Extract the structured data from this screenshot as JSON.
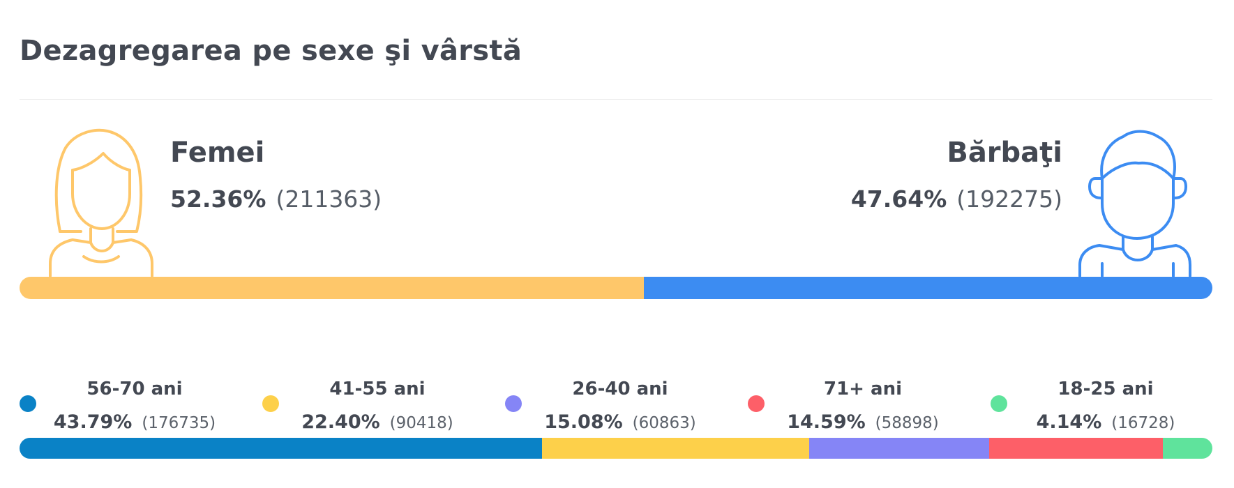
{
  "header": {
    "title": "Dezagregarea pe sexe şi vârstă"
  },
  "gender": {
    "female": {
      "label": "Femei",
      "percent": "52.36%",
      "count": "(211363)",
      "share": 52.36,
      "color": "#fec76a",
      "icon": "woman-icon"
    },
    "male": {
      "label": "Bărbaţi",
      "percent": "47.64%",
      "count": "(192275)",
      "share": 47.64,
      "color": "#3c8cf2",
      "icon": "man-icon"
    }
  },
  "chart_data": [
    {
      "type": "bar",
      "categories": [
        "Femei",
        "Bărbaţi"
      ],
      "values": [
        52.36,
        47.64
      ],
      "counts": [
        211363,
        192275
      ]
    },
    {
      "type": "bar",
      "categories": [
        "56-70 ani",
        "41-55 ani",
        "26-40 ani",
        "71+ ani",
        "18-25 ani"
      ],
      "values": [
        43.79,
        22.4,
        15.08,
        14.59,
        4.14
      ],
      "counts": [
        176735,
        90418,
        60863,
        58898,
        16728
      ],
      "colors": [
        "#0a82c6",
        "#fdd04a",
        "#8585f6",
        "#fd5f68",
        "#5fe39c"
      ]
    }
  ],
  "age_legend": [
    {
      "label": "56-70 ani",
      "percent": "43.79%",
      "count": "(176735)"
    },
    {
      "label": "41-55 ani",
      "percent": "22.40%",
      "count": "(90418)"
    },
    {
      "label": "26-40 ani",
      "percent": "15.08%",
      "count": "(60863)"
    },
    {
      "label": "71+ ani",
      "percent": "14.59%",
      "count": "(58898)"
    },
    {
      "label": "18-25 ani",
      "percent": "4.14%",
      "count": "(16728)"
    }
  ]
}
